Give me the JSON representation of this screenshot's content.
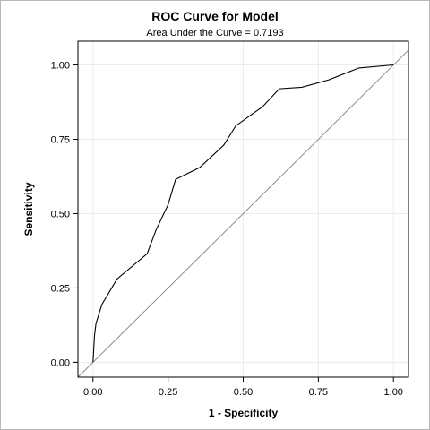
{
  "chart_data": {
    "type": "line",
    "title": "ROC Curve for Model",
    "subtitle": "Area Under the Curve = 0.7193",
    "xlabel": "1 - Specificity",
    "ylabel": "Sensitivity",
    "xlim": [
      -0.05,
      1.05
    ],
    "ylim": [
      -0.05,
      1.08
    ],
    "xticks": [
      "0.00",
      "0.25",
      "0.50",
      "0.75",
      "1.00"
    ],
    "yticks": [
      "0.00",
      "0.25",
      "0.50",
      "0.75",
      "1.00"
    ],
    "grid": true,
    "legend": "none",
    "series": [
      {
        "kind": "roc-curve",
        "color": "#000000",
        "x": [
          0.0,
          0.005,
          0.01,
          0.03,
          0.08,
          0.18,
          0.21,
          0.25,
          0.275,
          0.355,
          0.435,
          0.475,
          0.565,
          0.62,
          0.695,
          0.785,
          0.885,
          1.0
        ],
        "y": [
          0.0,
          0.09,
          0.13,
          0.195,
          0.28,
          0.365,
          0.445,
          0.53,
          0.615,
          0.655,
          0.73,
          0.795,
          0.86,
          0.92,
          0.925,
          0.95,
          0.99,
          1.0
        ]
      },
      {
        "kind": "reference-diagonal",
        "color": "#8c8c8c",
        "x": [
          -0.05,
          1.05
        ],
        "y": [
          -0.05,
          1.05
        ]
      }
    ]
  }
}
